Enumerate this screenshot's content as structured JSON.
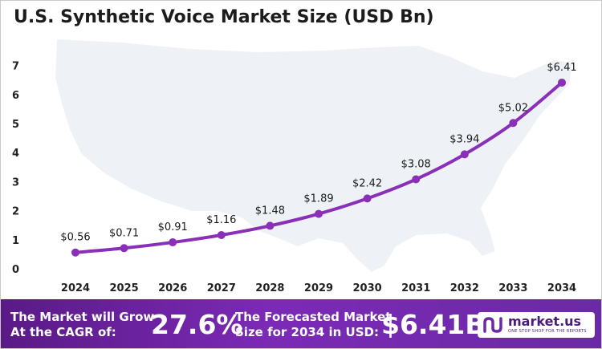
{
  "chart_data": {
    "type": "line",
    "title": "U.S. Synthetic Voice Market Size (USD Bn)",
    "x": [
      "2024",
      "2025",
      "2026",
      "2027",
      "2028",
      "2029",
      "2030",
      "2031",
      "2032",
      "2033",
      "2034"
    ],
    "values": [
      0.56,
      0.71,
      0.91,
      1.16,
      1.48,
      1.89,
      2.42,
      3.08,
      3.94,
      5.02,
      6.41
    ],
    "data_labels": [
      "$0.56",
      "$0.71",
      "$0.91",
      "$1.16",
      "$1.48",
      "$1.89",
      "$2.42",
      "$3.08",
      "$3.94",
      "$5.02",
      "$6.41"
    ],
    "yticks": [
      "0",
      "1",
      "2",
      "3",
      "4",
      "5",
      "6",
      "7"
    ],
    "ylim": [
      0,
      7
    ],
    "grid": false,
    "line_color": "#8a2fb8",
    "background_image": "us-map-silhouette"
  },
  "banner": {
    "growth_text_line1": "The Market will Grow",
    "growth_text_line2": "At the CAGR of:",
    "cagr": "27.6%",
    "forecast_text_line1": "The Forecasted Market",
    "forecast_text_line2": "Size for 2034 in USD:",
    "forecast_value": "$6.41B",
    "brand_name": "market.us",
    "brand_tagline": "ONE STOP SHOP FOR THE REPORTS",
    "brand_icon": "market-us-logo-icon"
  }
}
